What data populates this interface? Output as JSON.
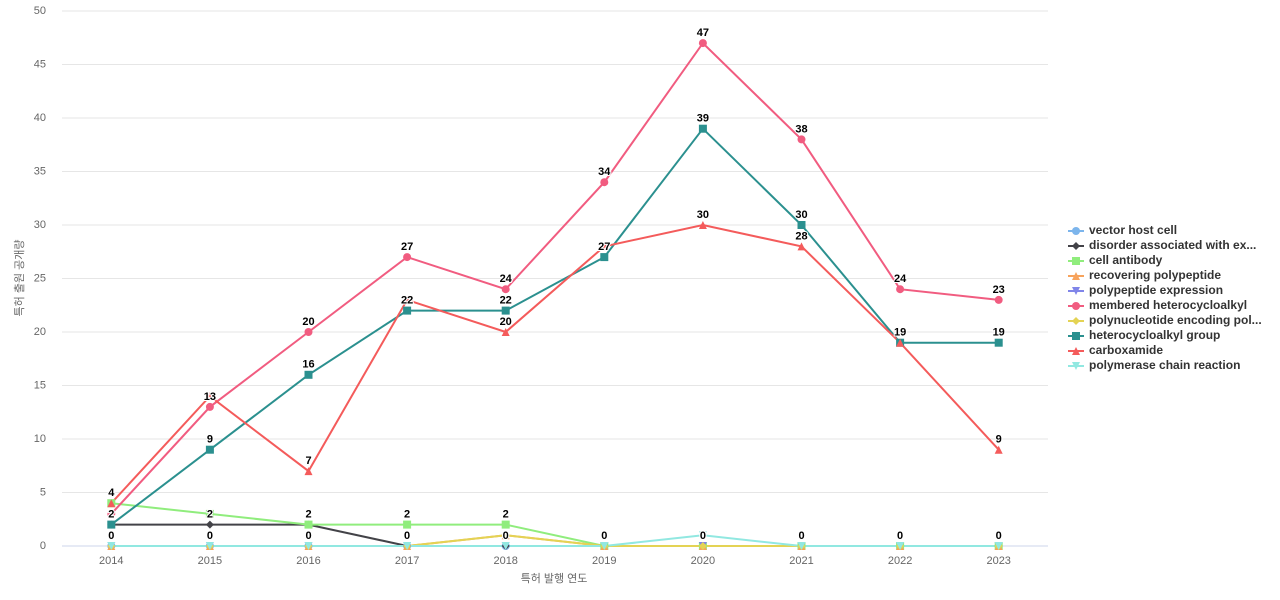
{
  "chart_data": {
    "type": "line",
    "x_label": "특허 발행 연도",
    "y_label": "특허 출원 공개량",
    "categories": [
      "2014",
      "2015",
      "2016",
      "2017",
      "2018",
      "2019",
      "2020",
      "2021",
      "2022",
      "2023"
    ],
    "ylim": [
      0,
      50
    ],
    "yticks": [
      0,
      5,
      10,
      15,
      20,
      25,
      30,
      35,
      40,
      45,
      50
    ],
    "grid": true,
    "legend": "right",
    "series": [
      {
        "name": "vector host cell",
        "color": "#7cb5ec",
        "marker": "circle",
        "values": [
          0,
          0,
          0,
          0,
          0,
          0,
          0,
          0,
          0,
          0
        ]
      },
      {
        "name": "disorder associated with ex...",
        "color": "#434348",
        "marker": "diamond",
        "values": [
          2,
          2,
          2,
          0,
          0,
          0,
          0,
          0,
          0,
          0
        ]
      },
      {
        "name": "cell antibody",
        "color": "#90ed7d",
        "marker": "square",
        "values": [
          4,
          3,
          2,
          2,
          2,
          0,
          0,
          0,
          0,
          0
        ]
      },
      {
        "name": "recovering polypeptide",
        "color": "#f7a35c",
        "marker": "triangle",
        "values": [
          0,
          0,
          0,
          0,
          1,
          0,
          0,
          0,
          0,
          0
        ]
      },
      {
        "name": "polypeptide expression",
        "color": "#8085e9",
        "marker": "triangle-down",
        "values": [
          0,
          0,
          0,
          0,
          0,
          0,
          0,
          0,
          0,
          0
        ]
      },
      {
        "name": "membered heterocycloalkyl",
        "color": "#f15c80",
        "marker": "circle",
        "values": [
          3,
          13,
          20,
          27,
          24,
          34,
          47,
          38,
          24,
          23
        ]
      },
      {
        "name": "polynucleotide encoding pol...",
        "color": "#e4d354",
        "marker": "diamond",
        "values": [
          0,
          0,
          0,
          0,
          1,
          0,
          0,
          0,
          0,
          0
        ]
      },
      {
        "name": "heterocycloalkyl group",
        "color": "#2b908f",
        "marker": "square",
        "values": [
          2,
          9,
          16,
          22,
          22,
          27,
          39,
          30,
          19,
          19
        ]
      },
      {
        "name": "carboxamide",
        "color": "#f45b5b",
        "marker": "triangle",
        "values": [
          4,
          14,
          7,
          23,
          20,
          28,
          30,
          28,
          19,
          9
        ]
      },
      {
        "name": "polymerase chain reaction",
        "color": "#91e8e1",
        "marker": "triangle-down",
        "values": [
          0,
          0,
          0,
          0,
          0,
          0,
          1,
          0,
          0,
          0
        ]
      }
    ]
  }
}
